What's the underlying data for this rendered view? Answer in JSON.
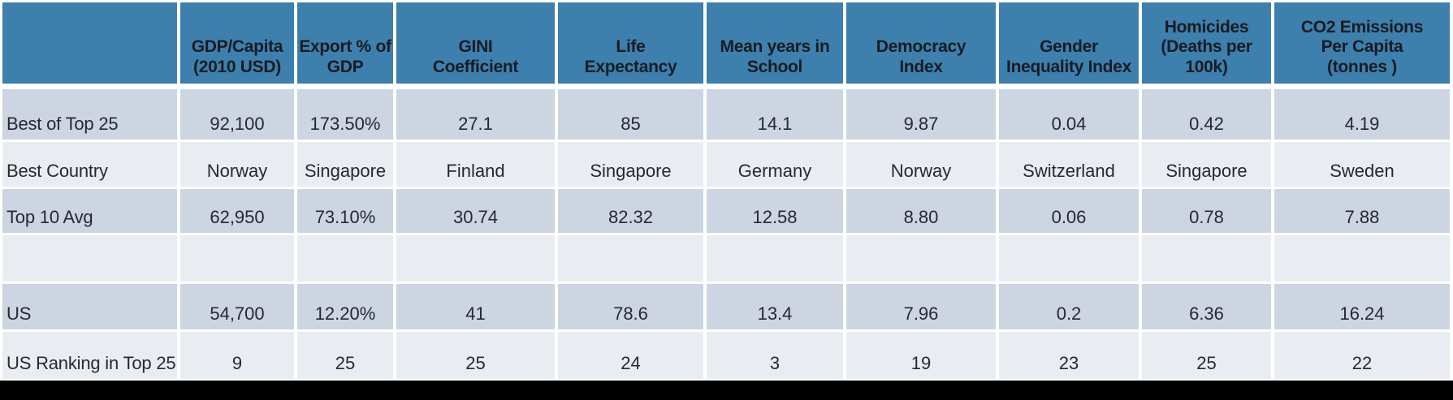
{
  "chart_data": {
    "type": "table",
    "columns": [
      "",
      "GDP/Capita\n(2010 USD)",
      "Export % of\nGDP",
      "GINI\nCoefficient",
      "Life\nExpectancy",
      "Mean years in\nSchool",
      "Democracy\nIndex",
      "Gender\nInequality Index",
      "Homicides\n(Deaths per\n100k)",
      "CO2 Emissions\nPer Capita\n(tonnes )"
    ],
    "rows": [
      {
        "label": "Best of Top 25",
        "values": [
          "92,100",
          "173.50%",
          "27.1",
          "85",
          "14.1",
          "9.87",
          "0.04",
          "0.42",
          "4.19"
        ]
      },
      {
        "label": "Best Country",
        "values": [
          "Norway",
          "Singapore",
          "Finland",
          "Singapore",
          "Germany",
          "Norway",
          "Switzerland",
          "Singapore",
          "Sweden"
        ]
      },
      {
        "label": "Top 10 Avg",
        "values": [
          "62,950",
          "73.10%",
          "30.74",
          "82.32",
          "12.58",
          "8.80",
          "0.06",
          "0.78",
          "7.88"
        ]
      },
      {
        "label": "",
        "values": [
          "",
          "",
          "",
          "",
          "",
          "",
          "",
          "",
          ""
        ]
      },
      {
        "label": "US",
        "values": [
          "54,700",
          "12.20%",
          "41",
          "78.6",
          "13.4",
          "7.96",
          "0.2",
          "6.36",
          "16.24"
        ]
      },
      {
        "label": "US Ranking in Top 25",
        "values": [
          "9",
          "25",
          "25",
          "24",
          "3",
          "19",
          "23",
          "25",
          "22"
        ]
      }
    ],
    "layout": {
      "header_position": "top",
      "row_striping": [
        "dark",
        "light",
        "dark",
        "light",
        "dark",
        "light"
      ],
      "grid": "white separators between all cells"
    }
  },
  "colors": {
    "header_bg": "#3d7fad",
    "row_dark": "#ccd5e1",
    "row_light": "#e9edf2",
    "separator": "#ffffff",
    "header_text": "#191c22",
    "body_text": "#26292f",
    "bottom_bar": "#000000"
  }
}
